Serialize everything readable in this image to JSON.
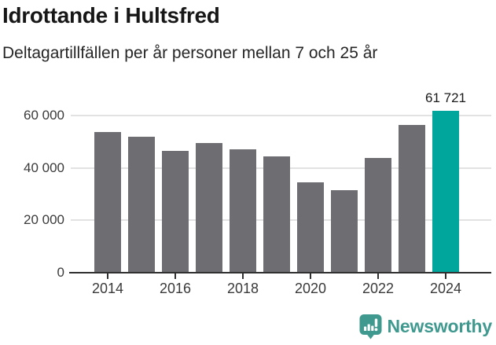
{
  "header": {
    "title": "Idrottande i Hultsfred",
    "subtitle": "Deltagartillfällen per år personer mellan 7 och 25 år"
  },
  "chart_data": {
    "type": "bar",
    "title": "Idrottande i Hultsfred",
    "subtitle": "Deltagartillfällen per år personer mellan 7 och 25 år",
    "xlabel": "",
    "ylabel": "",
    "categories": [
      2014,
      2015,
      2016,
      2017,
      2018,
      2019,
      2020,
      2021,
      2022,
      2023,
      2024
    ],
    "values": [
      53800,
      51800,
      46500,
      49600,
      47200,
      44300,
      34500,
      31500,
      43700,
      56500,
      61721
    ],
    "highlight": {
      "index": 10,
      "label": "61 721",
      "color": "#00a59c"
    },
    "bar_color": "#6e6e72",
    "grid": true,
    "gridline_color": "#e2e2e2",
    "axis_color": "#303030",
    "tick_label_color": "#3a3a3a",
    "ylim": [
      0,
      65000
    ],
    "y_ticks": [
      {
        "value": 0,
        "label": "0"
      },
      {
        "value": 20000,
        "label": "20 000"
      },
      {
        "value": 40000,
        "label": "40 000"
      },
      {
        "value": 60000,
        "label": "60 000"
      }
    ],
    "x_ticks": [
      2014,
      2016,
      2018,
      2020,
      2022,
      2024
    ],
    "legend": null
  },
  "footer": {
    "brand": "Newsworthy",
    "brand_color": "#3f998f",
    "logo_icon": "bar-chart-speech-bubble-icon"
  }
}
